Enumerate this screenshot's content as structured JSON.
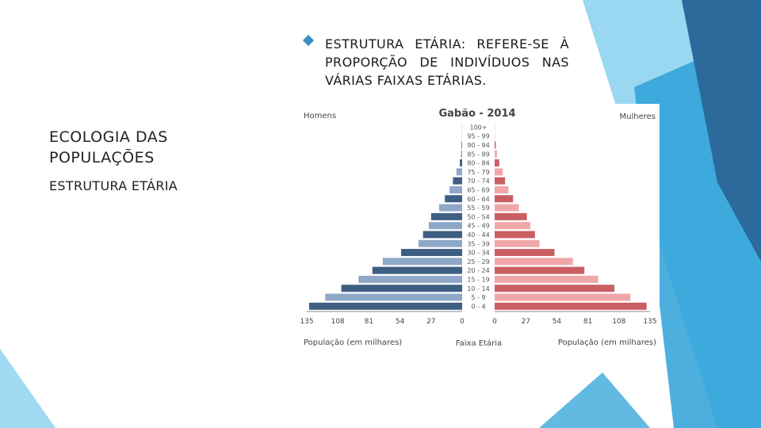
{
  "slide": {
    "title": "ECOLOGIA DAS POPULAÇÕES",
    "subtitle": "ESTRUTURA ETÁRIA",
    "bullet_text": "ESTRUTURA ETÁRIA: REFERE-SE À PROPORÇÃO DE INDIVÍDUOS NAS VÁRIAS FAIXAS ETÁRIAS."
  },
  "colors": {
    "accent": "#3a8fc2",
    "male_dark": "#3f5f82",
    "male_light": "#8fa8c8",
    "female_dark": "#c95f62",
    "female_light": "#efa7aa",
    "deco_dark": "#2b6a9a",
    "deco_mid": "#2ea1d8",
    "deco_light": "#8fd3f0"
  },
  "chart_data": {
    "type": "bar",
    "title": "Gabão - 2014",
    "left_label": "Homens",
    "right_label": "Mulheres",
    "center_label": "Faixa Etária",
    "xlabel_left": "População (em milhares)",
    "xlabel_right": "População (em milhares)",
    "xlim": [
      0,
      135
    ],
    "xticks": [
      "135",
      "108",
      "81",
      "54",
      "27",
      "0"
    ],
    "xticks_right": [
      "0",
      "27",
      "54",
      "81",
      "108",
      "135"
    ],
    "categories": [
      "0 - 4",
      "5 - 9",
      "10 - 14",
      "15 - 19",
      "20 - 24",
      "25 - 29",
      "30 - 34",
      "35 - 39",
      "40 - 44",
      "45 - 49",
      "50 - 54",
      "55 - 59",
      "60 - 64",
      "65 - 69",
      "70 - 74",
      "75 - 79",
      "80 - 84",
      "85 - 89",
      "90 - 94",
      "95 - 99",
      "100+"
    ],
    "series": [
      {
        "name": "Homens",
        "values": [
          133,
          119,
          105,
          90,
          78,
          69,
          53,
          38,
          34,
          29,
          27,
          20,
          15,
          11,
          8,
          5,
          2,
          1,
          0.5,
          0.2,
          0.1
        ]
      },
      {
        "name": "Mulheres",
        "values": [
          132,
          118,
          104,
          90,
          78,
          68,
          52,
          39,
          35,
          31,
          28,
          21,
          16,
          12,
          9,
          7,
          4,
          2,
          1,
          0.3,
          0.1
        ]
      }
    ]
  }
}
